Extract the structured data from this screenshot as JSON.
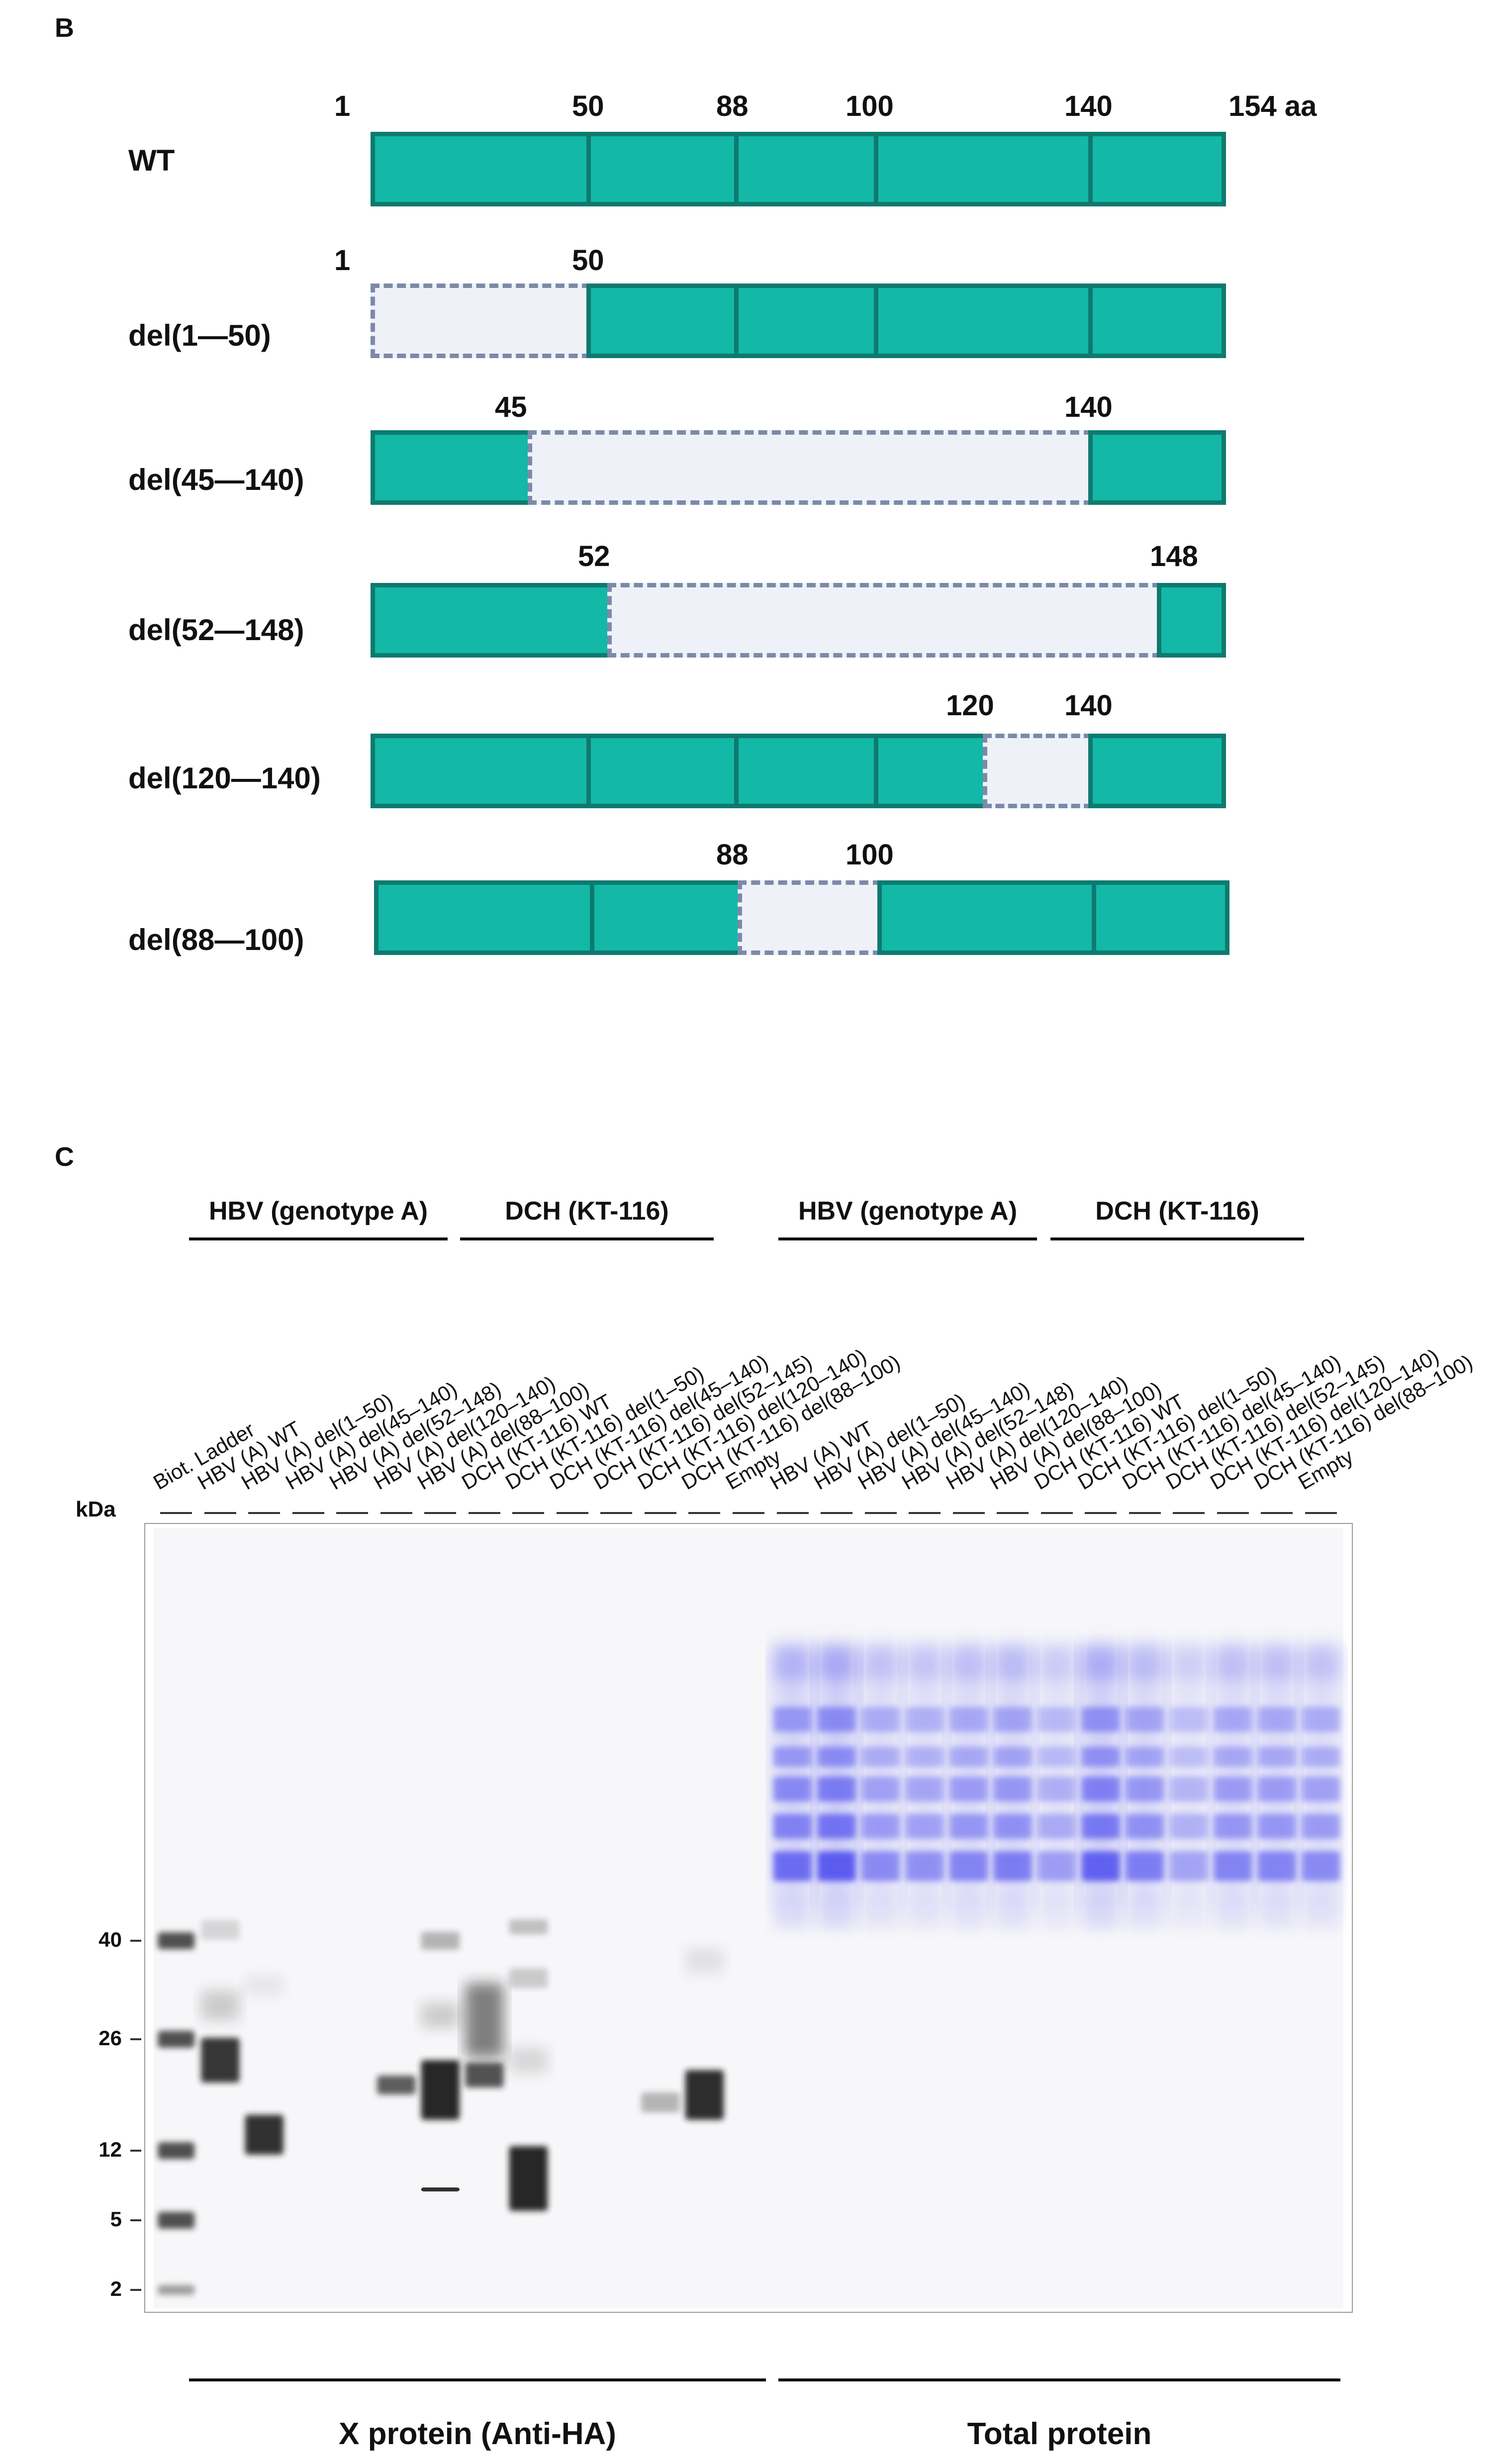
{
  "panel_b": {
    "label": "B",
    "wt": {
      "name": "WT",
      "marks": [
        "1",
        "50",
        "88",
        "100",
        "140",
        "154 aa"
      ]
    },
    "constructs": [
      {
        "name": "del(1—50)",
        "marks": [
          "1",
          "50"
        ]
      },
      {
        "name": "del(45—140)",
        "marks": [
          "45",
          "140"
        ]
      },
      {
        "name": "del(52—148)",
        "marks": [
          "52",
          "148"
        ]
      },
      {
        "name": "del(120—140)",
        "marks": [
          "120",
          "140"
        ]
      },
      {
        "name": "del(88—100)",
        "marks": [
          "88",
          "100"
        ]
      }
    ]
  },
  "panel_c": {
    "label": "C",
    "groups": [
      "HBV (genotype A)",
      "DCH (KT-116)",
      "HBV (genotype A)",
      "DCH (KT-116)"
    ],
    "kda_label": "kDa",
    "ladder_ticks": [
      "40",
      "26",
      "12",
      "5",
      "2"
    ],
    "lanes": [
      "Biot. Ladder",
      "HBV (A) WT",
      "HBV (A) del(1–50)",
      "HBV (A) del(45–140)",
      "HBV (A) del(52–148)",
      "HBV (A) del(120–140)",
      "HBV (A) del(88–100)",
      "DCH (KT-116) WT",
      "DCH (KT-116) del(1–50)",
      "DCH (KT-116) del(45–140)",
      "DCH (KT-116) del(52–145)",
      "DCH (KT-116) del(120–140)",
      "DCH (KT-116) del(88–100)",
      "Empty",
      "HBV (A) WT",
      "HBV (A) del(1–50)",
      "HBV (A) del(45–140)",
      "HBV (A) del(52–148)",
      "HBV (A) del(120–140)",
      "HBV (A) del(88–100)",
      "DCH (KT-116) WT",
      "DCH (KT-116) del(1–50)",
      "DCH (KT-116) del(45–140)",
      "DCH (KT-116) del(52–145)",
      "DCH (KT-116) del(120–140)",
      "DCH (KT-116) del(88–100)",
      "Empty"
    ],
    "bottom_labels": [
      "X protein (Anti-HA)",
      "Total protein"
    ],
    "colors": {
      "teal": "#13b8a6",
      "teal_border": "#0e7a6f",
      "gap": "#eef2f8",
      "dash": "#7c8aa8",
      "band_dark": "#1a1a1a",
      "band_blue": "#4a4af0"
    }
  }
}
